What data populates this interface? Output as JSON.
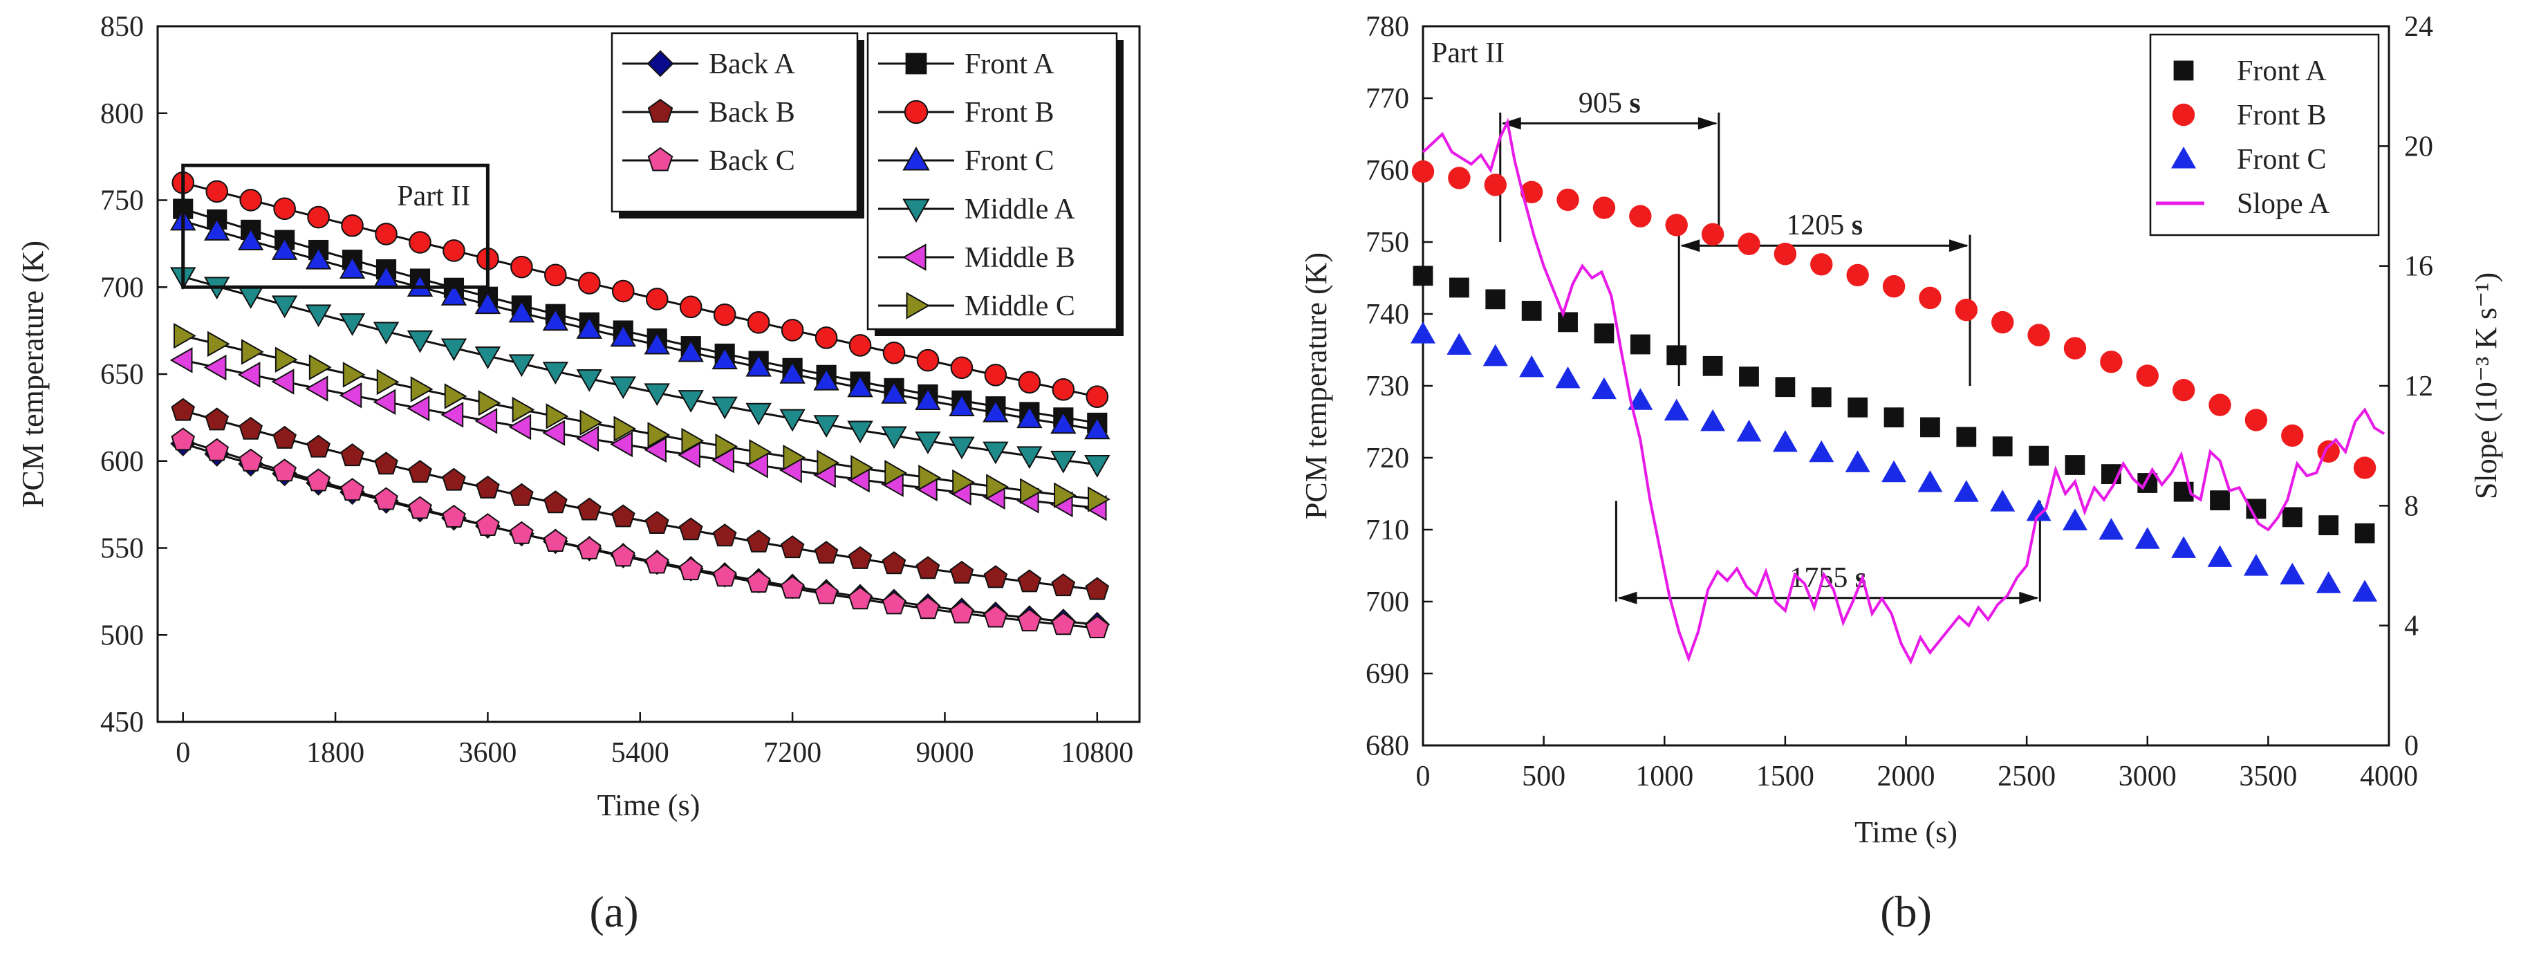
{
  "chart_data": [
    {
      "id": "a",
      "type": "line",
      "panel_label": "(a)",
      "title": "",
      "xlabel": "Time (s)",
      "ylabel": "PCM temperature (K)",
      "xlim": [
        -300,
        11300
      ],
      "ylim": [
        450,
        850
      ],
      "xticks": [
        0,
        1800,
        3600,
        5400,
        7200,
        9000,
        10800
      ],
      "yticks": [
        450,
        500,
        550,
        600,
        650,
        700,
        750,
        800,
        850
      ],
      "legend": "top-right, two columns",
      "grid": false,
      "annotation": {
        "text": "Part II",
        "box_x": [
          0,
          3600
        ],
        "box_y": [
          700,
          770
        ]
      },
      "series": [
        {
          "name": "Back A",
          "marker": "diamond",
          "color": "#0a0a8c",
          "x0": 0,
          "dx": 400,
          "n": 28,
          "y_start": 610,
          "y_end": 506,
          "curve": 0.55
        },
        {
          "name": "Back B",
          "marker": "pentagon",
          "color": "#8b1a1a",
          "x0": 0,
          "dx": 400,
          "n": 28,
          "y_start": 629,
          "y_end": 526,
          "curve": 0.45
        },
        {
          "name": "Back C",
          "marker": "pentagon",
          "color": "#f04b9b",
          "x0": 0,
          "dx": 400,
          "n": 28,
          "y_start": 612,
          "y_end": 504,
          "curve": 0.55
        },
        {
          "name": "Front A",
          "marker": "square",
          "color": "#111111",
          "x0": 0,
          "dx": 400,
          "n": 28,
          "y_start": 745,
          "y_end": 622,
          "curve": 0.35
        },
        {
          "name": "Front B",
          "marker": "circle",
          "color": "#ee1c1c",
          "x0": 0,
          "dx": 400,
          "n": 28,
          "y_start": 760,
          "y_end": 637,
          "curve": 0.1
        },
        {
          "name": "Front C",
          "marker": "triangle-up",
          "color": "#1a2be8",
          "x0": 0,
          "dx": 400,
          "n": 28,
          "y_start": 738,
          "y_end": 618,
          "curve": 0.3
        },
        {
          "name": "Middle A",
          "marker": "triangle-down",
          "color": "#1f8a8a",
          "x0": 0,
          "dx": 400,
          "n": 28,
          "y_start": 706,
          "y_end": 598,
          "curve": 0.4
        },
        {
          "name": "Middle B",
          "marker": "triangle-left",
          "color": "#e040e0",
          "x0": 0,
          "dx": 400,
          "n": 28,
          "y_start": 658,
          "y_end": 573,
          "curve": 0.35
        },
        {
          "name": "Middle C",
          "marker": "triangle-right",
          "color": "#8c8c1e",
          "x0": 0,
          "dx": 400,
          "n": 28,
          "y_start": 672,
          "y_end": 578,
          "curve": 0.35
        }
      ]
    },
    {
      "id": "b",
      "type": "scatter",
      "panel_label": "(b)",
      "title": "",
      "xlabel": "Time (s)",
      "ylabel": "PCM temperature (K)",
      "y2label": "Slope (10⁻³ K s⁻¹)",
      "xlim": [
        0,
        4000
      ],
      "ylim": [
        680,
        780
      ],
      "y2lim": [
        0,
        24
      ],
      "xticks": [
        0,
        500,
        1000,
        1500,
        2000,
        2500,
        3000,
        3500,
        4000
      ],
      "yticks": [
        680,
        690,
        700,
        710,
        720,
        730,
        740,
        750,
        760,
        770,
        780
      ],
      "y2ticks": [
        0,
        4,
        8,
        12,
        16,
        20,
        24
      ],
      "legend": "top-right",
      "grid": false,
      "part_label": "Part II",
      "series": [
        {
          "name": "Front A",
          "marker": "square",
          "color": "#111111",
          "x0": 0,
          "dx": 150,
          "n": 27,
          "y_start": 745.3,
          "y_end": 709.5,
          "curve": 0.2,
          "axis": "left"
        },
        {
          "name": "Front B",
          "marker": "circle",
          "color": "#ee1c1c",
          "x0": 0,
          "dx": 150,
          "n": 27,
          "y_start": 759.8,
          "y_end": 718.6,
          "curve": -0.45,
          "axis": "left"
        },
        {
          "name": "Front C",
          "marker": "triangle-up",
          "color": "#1a2be8",
          "x0": 0,
          "dx": 150,
          "n": 27,
          "y_start": 737.2,
          "y_end": 701.3,
          "curve": 0.15,
          "axis": "left"
        },
        {
          "name": "Slope A",
          "marker": "line",
          "color": "#e81ae8",
          "axis": "right",
          "x": [
            0,
            40,
            80,
            120,
            160,
            200,
            240,
            280,
            320,
            350,
            380,
            420,
            460,
            500,
            540,
            580,
            620,
            660,
            700,
            740,
            780,
            820,
            860,
            900,
            940,
            980,
            1020,
            1060,
            1100,
            1140,
            1180,
            1220,
            1260,
            1300,
            1340,
            1380,
            1420,
            1460,
            1500,
            1540,
            1580,
            1620,
            1660,
            1700,
            1740,
            1780,
            1820,
            1860,
            1900,
            1940,
            1980,
            2020,
            2060,
            2100,
            2140,
            2180,
            2220,
            2260,
            2300,
            2340,
            2380,
            2420,
            2460,
            2500,
            2540,
            2580,
            2620,
            2660,
            2700,
            2740,
            2780,
            2820,
            2860,
            2900,
            2940,
            2980,
            3020,
            3060,
            3100,
            3140,
            3180,
            3220,
            3260,
            3300,
            3340,
            3380,
            3420,
            3460,
            3500,
            3540,
            3580,
            3620,
            3660,
            3700,
            3740,
            3780,
            3820,
            3860,
            3900,
            3940,
            3980
          ],
          "y": [
            19.8,
            20.1,
            20.4,
            19.8,
            19.6,
            19.4,
            19.7,
            19.2,
            20.3,
            20.8,
            19.5,
            18.2,
            17.0,
            16.0,
            15.2,
            14.4,
            15.4,
            16.0,
            15.6,
            15.8,
            15.0,
            13.2,
            11.5,
            10.2,
            8.2,
            6.6,
            5.0,
            3.8,
            2.9,
            3.8,
            5.2,
            5.8,
            5.5,
            5.9,
            5.3,
            5.0,
            5.8,
            4.8,
            4.5,
            5.7,
            5.4,
            4.6,
            5.7,
            5.2,
            4.1,
            4.8,
            5.6,
            4.4,
            4.9,
            4.4,
            3.4,
            2.8,
            3.6,
            3.1,
            3.5,
            3.9,
            4.3,
            4.0,
            4.6,
            4.2,
            4.7,
            5.0,
            5.6,
            6.0,
            7.6,
            7.9,
            9.2,
            8.4,
            8.8,
            7.8,
            8.6,
            8.2,
            8.7,
            9.4,
            8.9,
            8.6,
            9.2,
            8.7,
            9.1,
            9.7,
            8.4,
            8.2,
            9.8,
            9.5,
            8.5,
            8.6,
            8.0,
            7.4,
            7.2,
            7.6,
            8.2,
            9.4,
            9.0,
            9.1,
            9.9,
            10.2,
            9.8,
            10.8,
            11.2,
            10.6,
            10.4
          ]
        }
      ],
      "intervals": [
        {
          "label": "905 s",
          "x_start": 320,
          "x_end": 1225,
          "y_arrow": 766.5,
          "y_top": 768,
          "y_bottom": 750
        },
        {
          "label": "1205 s",
          "x_start": 1060,
          "x_end": 2265,
          "y_arrow": 749.5,
          "y_top": 751,
          "y_bottom": 730
        },
        {
          "label": "1755 s",
          "x_start": 800,
          "x_end": 2555,
          "y_arrow": 700.5,
          "y_top": 714,
          "y_bottom": 700
        }
      ]
    }
  ]
}
